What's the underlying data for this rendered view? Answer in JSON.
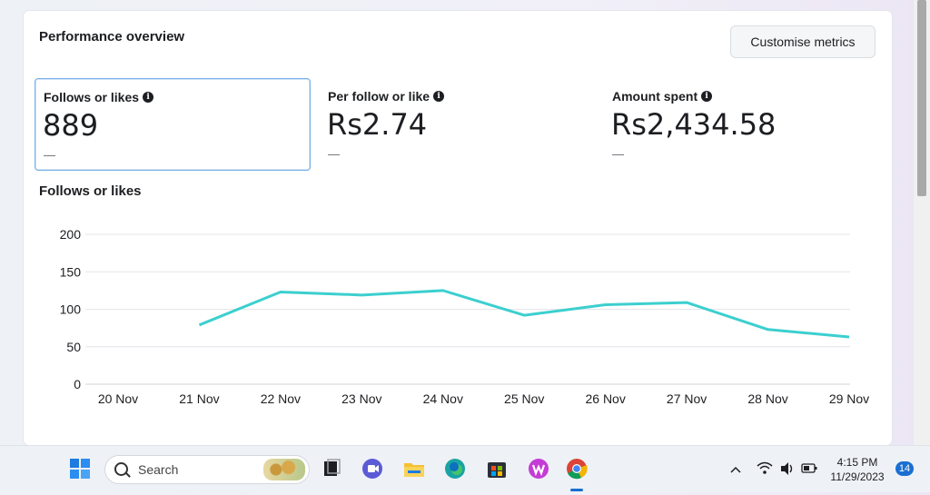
{
  "panel": {
    "title": "Performance overview",
    "customise_label": "Customise metrics"
  },
  "metrics": [
    {
      "label": "Follows or likes",
      "value": "889",
      "delta": "—",
      "selected": true
    },
    {
      "label": "Per follow or like",
      "value": "Rs2.74",
      "delta": "—",
      "selected": false
    },
    {
      "label": "Amount spent",
      "value": "Rs2,434.58",
      "delta": "—",
      "selected": false
    }
  ],
  "chart_title": "Follows or likes",
  "chart_data": {
    "type": "line",
    "categories": [
      "20 Nov",
      "21 Nov",
      "22 Nov",
      "23 Nov",
      "24 Nov",
      "25 Nov",
      "26 Nov",
      "27 Nov",
      "28 Nov",
      "29 Nov"
    ],
    "series": [
      {
        "color": "#3ccfcf",
        "values": [
          null,
          79,
          123,
          119,
          125,
          92,
          106,
          109,
          73,
          63
        ]
      }
    ],
    "yticks": [
      0,
      50,
      100,
      150,
      200
    ],
    "ylim": [
      0,
      200
    ],
    "grid": true,
    "title": "",
    "xlabel": "",
    "ylabel": ""
  },
  "taskbar": {
    "search_placeholder": "Search",
    "time": "4:15 PM",
    "date": "11/29/2023",
    "notification_count": "14",
    "apps": [
      "windows-start-icon",
      "task-view-icon",
      "meet-icon",
      "file-explorer-icon",
      "edge-icon",
      "store-icon",
      "wps-office-icon",
      "chrome-icon"
    ]
  }
}
